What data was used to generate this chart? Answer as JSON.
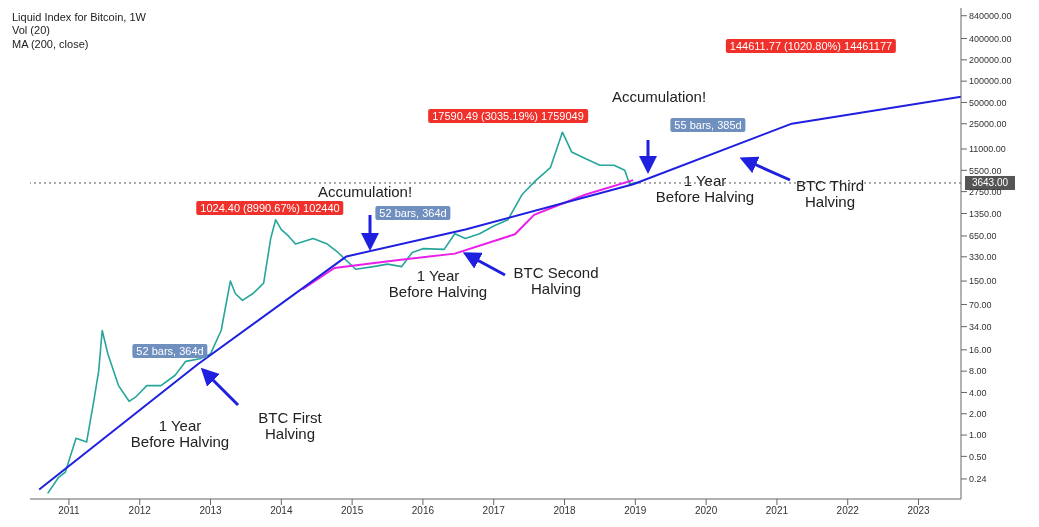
{
  "chart_data": {
    "type": "line",
    "title": "Liquid Index for Bitcoin, 1W",
    "log": "y",
    "xlim": [
      2010.45,
      2023.6
    ],
    "xticks": [
      2011,
      2012,
      2013,
      2014,
      2015,
      2016,
      2017,
      2018,
      2019,
      2020,
      2021,
      2022,
      2023
    ],
    "ylim": [
      0.125,
      1080000
    ],
    "yticks": [
      {
        "value": 840000,
        "label": "840000.00"
      },
      {
        "value": 400000,
        "label": "400000.00"
      },
      {
        "value": 200000,
        "label": "200000.00"
      },
      {
        "value": 100000,
        "label": "100000.00"
      },
      {
        "value": 50000,
        "label": "50000.00"
      },
      {
        "value": 25000,
        "label": "25000.00"
      },
      {
        "value": 11000,
        "label": "11000.00"
      },
      {
        "value": 5500,
        "label": "5500.00"
      },
      {
        "value": 2750,
        "label": "2750.00"
      },
      {
        "value": 1350,
        "label": "1350.00"
      },
      {
        "value": 650,
        "label": "650.00"
      },
      {
        "value": 330,
        "label": "330.00"
      },
      {
        "value": 150,
        "label": "150.00"
      },
      {
        "value": 70,
        "label": "70.00"
      },
      {
        "value": 34,
        "label": "34.00"
      },
      {
        "value": 16,
        "label": "16.00"
      },
      {
        "value": 8,
        "label": "8.00"
      },
      {
        "value": 4,
        "label": "4.00"
      },
      {
        "value": 2,
        "label": "2.00"
      },
      {
        "value": 1,
        "label": "1.00"
      },
      {
        "value": 0.5,
        "label": "0.50"
      },
      {
        "value": 0.24,
        "label": "0.24"
      }
    ],
    "series": [
      {
        "type": "line",
        "color": "#26a69a",
        "x": [
          2010.7,
          2010.85,
          2010.95,
          2011.1,
          2011.25,
          2011.35,
          2011.42,
          2011.45,
          2011.47,
          2011.55,
          2011.7,
          2011.85,
          2011.95,
          2012.1,
          2012.3,
          2012.5,
          2012.65,
          2012.85,
          2013.0,
          2013.15,
          2013.28,
          2013.35,
          2013.45,
          2013.6,
          2013.75,
          2013.85,
          2013.92,
          2014.0,
          2014.1,
          2014.2,
          2014.45,
          2014.65,
          2014.8,
          2015.05,
          2015.3,
          2015.5,
          2015.7,
          2015.85,
          2016.0,
          2016.3,
          2016.45,
          2016.6,
          2016.8,
          2017.0,
          2017.2,
          2017.4,
          2017.6,
          2017.8,
          2017.97,
          2018.1,
          2018.3,
          2018.5,
          2018.7,
          2018.85,
          2018.92,
          2019.0,
          2019.05
        ],
        "values": [
          0.15,
          0.25,
          0.3,
          0.9,
          0.8,
          3,
          8,
          18,
          30,
          14,
          5,
          3,
          3.5,
          5,
          5,
          7,
          11,
          12,
          14,
          30,
          150,
          100,
          80,
          100,
          140,
          600,
          1100,
          800,
          650,
          500,
          600,
          500,
          380,
          220,
          240,
          260,
          240,
          380,
          430,
          420,
          700,
          600,
          700,
          900,
          1100,
          2500,
          4000,
          6000,
          19000,
          10000,
          8000,
          6500,
          6500,
          5500,
          3500,
          3700,
          3643
        ]
      },
      {
        "type": "line",
        "color": "#e91ee9",
        "x": [
          2014.3,
          2014.75,
          2015.6,
          2016.45,
          2017.3,
          2017.57,
          2017.9,
          2018.3,
          2018.97
        ],
        "values": [
          115,
          229,
          293,
          366,
          686,
          1290,
          1750,
          2500,
          4000
        ]
      },
      {
        "type": "line",
        "color": "#1f1fe0",
        "x": [
          2010.58,
          2012.82,
          2014.92,
          2016.6,
          2018.97,
          2021.21,
          2023.6
        ],
        "values": [
          0.17,
          10,
          334,
          800,
          3490,
          25100,
          60000
        ]
      }
    ],
    "ref_lines": [
      {
        "axis": "y",
        "value": 3643,
        "label": "3643.00",
        "line_style": "dotted",
        "color": "#555555"
      }
    ],
    "annotations": [
      "Vol (20)",
      "MA (200, close)",
      "52 bars, 364d",
      "1024.40 (8990.67%) 102440",
      "Accumulation!",
      "52 bars, 364d",
      "17590.49 (3035.19%) 1759049",
      "Accumulation!",
      "55 bars, 385d",
      "144611.77 (1020.80%) 14461177",
      "1 Year Before Halving",
      "BTC First Halving",
      "1 Year Before Halving",
      "BTC Second Halving",
      "1 Year Before Halving",
      "BTC Third Halving"
    ]
  }
}
